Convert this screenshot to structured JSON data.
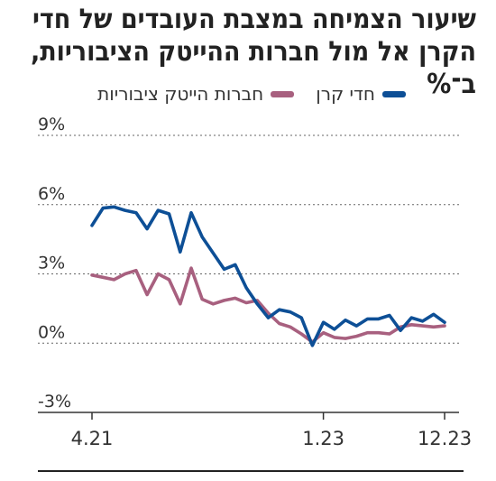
{
  "chart_data": {
    "type": "line",
    "title": "שיעור הצמיחה במצבת העובדים של חדי הקרן אל מול חברות ההייטק הציבוריות, ב־%",
    "xlabel": "",
    "ylabel": "",
    "ylim": [
      -3,
      9
    ],
    "yticks": [
      "9%",
      "6%",
      "3%",
      "0%",
      "-3%"
    ],
    "ytick_values": [
      9,
      6,
      3,
      0,
      -3
    ],
    "xticks": [
      {
        "label": "4.21",
        "index": 0
      },
      {
        "label": "1.23",
        "index": 21
      },
      {
        "label": "12.23",
        "index": 32
      }
    ],
    "grid": true,
    "legend_position": "top",
    "series": [
      {
        "name": "חדי קרן",
        "color": "#0d4f96",
        "values": [
          5.1,
          5.85,
          5.9,
          5.75,
          5.65,
          4.95,
          5.75,
          5.6,
          3.95,
          5.65,
          4.6,
          3.9,
          3.2,
          3.4,
          2.4,
          1.7,
          1.1,
          1.45,
          1.35,
          1.1,
          -0.1,
          0.9,
          0.6,
          1.0,
          0.75,
          1.05,
          1.05,
          1.2,
          0.55,
          1.1,
          0.95,
          1.25,
          0.9
        ]
      },
      {
        "name": "חברות הייטק ציבוריות",
        "color": "#a8607f",
        "values": [
          2.95,
          2.85,
          2.75,
          3.0,
          3.15,
          2.1,
          3.0,
          2.75,
          1.7,
          3.25,
          1.9,
          1.7,
          1.85,
          1.95,
          1.75,
          1.85,
          1.3,
          0.85,
          0.7,
          0.4,
          0.05,
          0.45,
          0.25,
          0.2,
          0.3,
          0.45,
          0.45,
          0.4,
          0.7,
          0.8,
          0.75,
          0.7,
          0.75
        ]
      }
    ]
  }
}
